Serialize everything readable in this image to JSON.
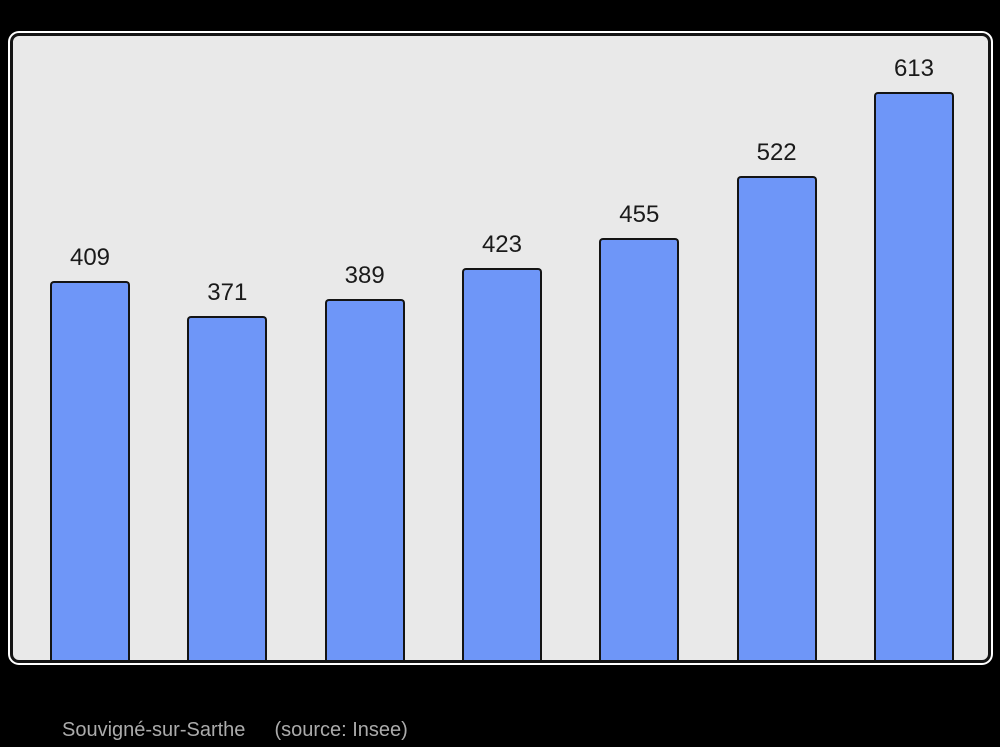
{
  "page": {
    "background": "#000000"
  },
  "caption": {
    "title": "Souvigné-sur-Sarthe",
    "source": "(source: Insee)",
    "color": "#ABABAB"
  },
  "chart_data": {
    "type": "bar",
    "values": [
      409,
      371,
      389,
      423,
      455,
      522,
      613
    ],
    "value_labels": [
      "409",
      "371",
      "389",
      "423",
      "455",
      "522",
      "613"
    ],
    "title": "",
    "xlabel": "",
    "ylabel": "",
    "ylim": [
      0,
      670
    ],
    "grid": false,
    "axes_visible": false,
    "legend": "none",
    "value_labels_position": "above-bars",
    "colors": {
      "bar_fill": "#6E96F8",
      "bar_border": "#141414",
      "plot_bg": "#E9E9E9",
      "frame_border": "#141414",
      "frame_outline": "#FFFFFF",
      "label_color": "#1A1A1A"
    }
  }
}
